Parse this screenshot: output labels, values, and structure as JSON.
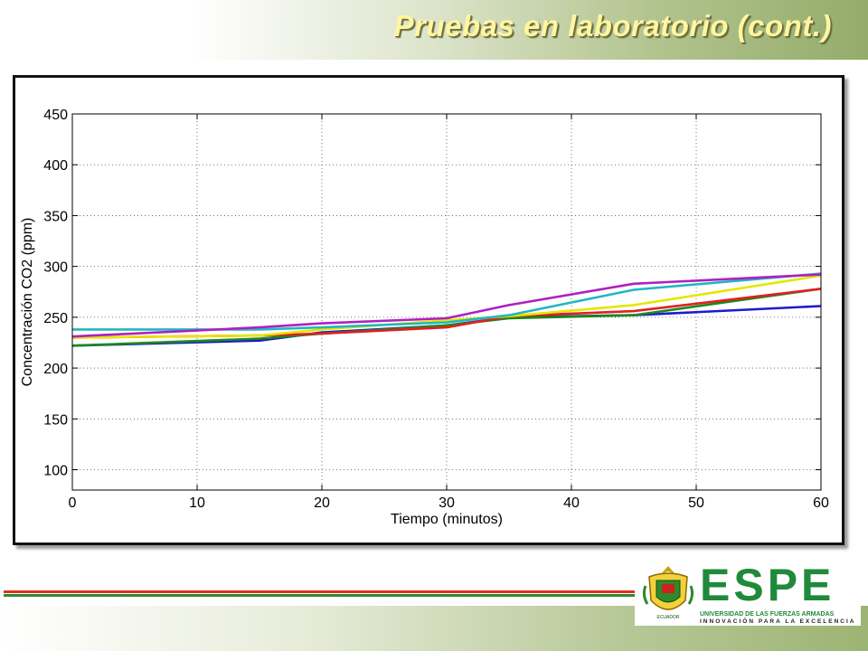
{
  "slide": {
    "title": "Pruebas en laboratorio (cont.)"
  },
  "logo": {
    "wordmark": "ESPE",
    "subtitle": "UNIVERSIDAD DE LAS FUERZAS ARMADAS",
    "tagline": "INNOVACIÓN PARA LA EXCELENCIA",
    "crest_text": "ECUADOR",
    "brand_color": "#1f8a3a"
  },
  "colors": {
    "title_text": "#fff6a0",
    "stripe_red": "#e03020",
    "stripe_green": "#2f8a2a"
  },
  "chart_data": {
    "type": "line",
    "xlabel": "Tiempo (minutos)",
    "ylabel": "Concentración CO2 (ppm)",
    "xlim": [
      0,
      60
    ],
    "ylim": [
      80,
      450
    ],
    "xticks": [
      0,
      10,
      20,
      30,
      40,
      50,
      60
    ],
    "yticks": [
      100,
      150,
      200,
      250,
      300,
      350,
      400,
      450
    ],
    "grid": true,
    "series": [
      {
        "color": "#1a1ad0",
        "points": [
          [
            0,
            222
          ],
          [
            15,
            227
          ],
          [
            20,
            235
          ],
          [
            30,
            242
          ],
          [
            35,
            250
          ],
          [
            45,
            252
          ],
          [
            60,
            261
          ]
        ]
      },
      {
        "color": "#1a8a1a",
        "points": [
          [
            0,
            222
          ],
          [
            15,
            229
          ],
          [
            20,
            234
          ],
          [
            30,
            242
          ],
          [
            35,
            249
          ],
          [
            45,
            252
          ],
          [
            60,
            278
          ]
        ]
      },
      {
        "color": "#e02020",
        "points": [
          [
            0,
            230
          ],
          [
            15,
            232
          ],
          [
            20,
            234
          ],
          [
            30,
            240
          ],
          [
            35,
            251
          ],
          [
            45,
            256
          ],
          [
            60,
            278
          ]
        ]
      },
      {
        "color": "#e6e600",
        "points": [
          [
            0,
            230
          ],
          [
            15,
            232
          ],
          [
            20,
            238
          ],
          [
            30,
            247
          ],
          [
            35,
            251
          ],
          [
            45,
            262
          ],
          [
            60,
            291
          ]
        ]
      },
      {
        "color": "#20b8c0",
        "points": [
          [
            0,
            238
          ],
          [
            15,
            238
          ],
          [
            20,
            240
          ],
          [
            30,
            245
          ],
          [
            35,
            252
          ],
          [
            45,
            277
          ],
          [
            60,
            293
          ]
        ]
      },
      {
        "color": "#b020c0",
        "points": [
          [
            0,
            231
          ],
          [
            15,
            240
          ],
          [
            20,
            244
          ],
          [
            30,
            249
          ],
          [
            35,
            262
          ],
          [
            45,
            283
          ],
          [
            60,
            292
          ]
        ]
      }
    ]
  }
}
